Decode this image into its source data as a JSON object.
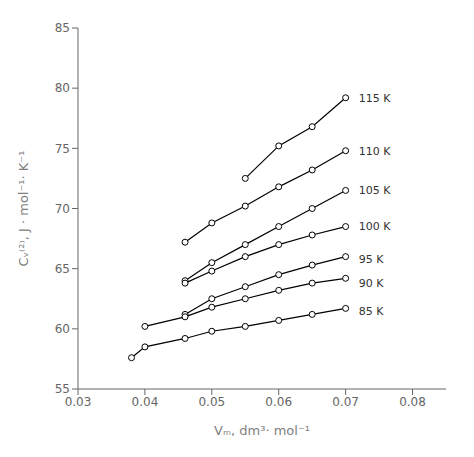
{
  "chart_data": {
    "type": "line",
    "x_label": "Vₘ,  dm³· mol⁻¹",
    "y_label": "Cᵥ⁽²⁾,  J · mol⁻¹· K⁻¹",
    "xlim": [
      0.03,
      0.085
    ],
    "ylim": [
      55,
      85
    ],
    "xticks": [
      0.03,
      0.04,
      0.05,
      0.06,
      0.07,
      0.08
    ],
    "yticks": [
      55,
      60,
      65,
      70,
      75,
      80,
      85
    ],
    "grid": false,
    "series": [
      {
        "name": "115 K",
        "color": "#000000",
        "marker": "circle",
        "x": [
          0.055,
          0.06,
          0.065,
          0.07
        ],
        "values": [
          72.5,
          75.2,
          76.8,
          79.2
        ]
      },
      {
        "name": "110 K",
        "color": "#000000",
        "marker": "circle",
        "x": [
          0.046,
          0.05,
          0.055,
          0.06,
          0.065,
          0.07
        ],
        "values": [
          67.2,
          68.8,
          70.2,
          71.8,
          73.2,
          74.8
        ]
      },
      {
        "name": "105 K",
        "color": "#000000",
        "marker": "circle",
        "x": [
          0.046,
          0.05,
          0.055,
          0.06,
          0.065,
          0.07
        ],
        "values": [
          64.0,
          65.5,
          67.0,
          68.5,
          70.0,
          71.5
        ]
      },
      {
        "name": "100 K",
        "color": "#000000",
        "marker": "circle",
        "x": [
          0.046,
          0.05,
          0.055,
          0.06,
          0.065,
          0.07
        ],
        "values": [
          63.8,
          64.8,
          66.0,
          67.0,
          67.8,
          68.5
        ]
      },
      {
        "name": "95 K",
        "color": "#000000",
        "marker": "circle",
        "x": [
          0.046,
          0.05,
          0.055,
          0.06,
          0.065,
          0.07
        ],
        "values": [
          61.2,
          62.5,
          63.5,
          64.5,
          65.3,
          66.0
        ]
      },
      {
        "name": "90 K",
        "color": "#000000",
        "marker": "circle",
        "x": [
          0.04,
          0.046,
          0.05,
          0.055,
          0.06,
          0.065,
          0.07
        ],
        "values": [
          60.2,
          61.0,
          61.8,
          62.5,
          63.2,
          63.8,
          64.2
        ]
      },
      {
        "name": "85 K",
        "color": "#000000",
        "marker": "circle",
        "x": [
          0.038,
          0.04,
          0.046,
          0.05,
          0.055,
          0.06,
          0.065,
          0.07
        ],
        "values": [
          57.6,
          58.5,
          59.2,
          59.8,
          60.2,
          60.7,
          61.2,
          61.7
        ]
      }
    ],
    "annotations": [
      {
        "text": "115 K",
        "x": 0.0712,
        "y": 79.2
      },
      {
        "text": "110 K",
        "x": 0.0712,
        "y": 74.8
      },
      {
        "text": "105 K",
        "x": 0.0712,
        "y": 71.5
      },
      {
        "text": "100 K",
        "x": 0.0712,
        "y": 68.5
      },
      {
        "text": "95 K",
        "x": 0.0712,
        "y": 65.8
      },
      {
        "text": "90 K",
        "x": 0.0712,
        "y": 63.8
      },
      {
        "text": "85 K",
        "x": 0.0712,
        "y": 61.5
      }
    ]
  }
}
